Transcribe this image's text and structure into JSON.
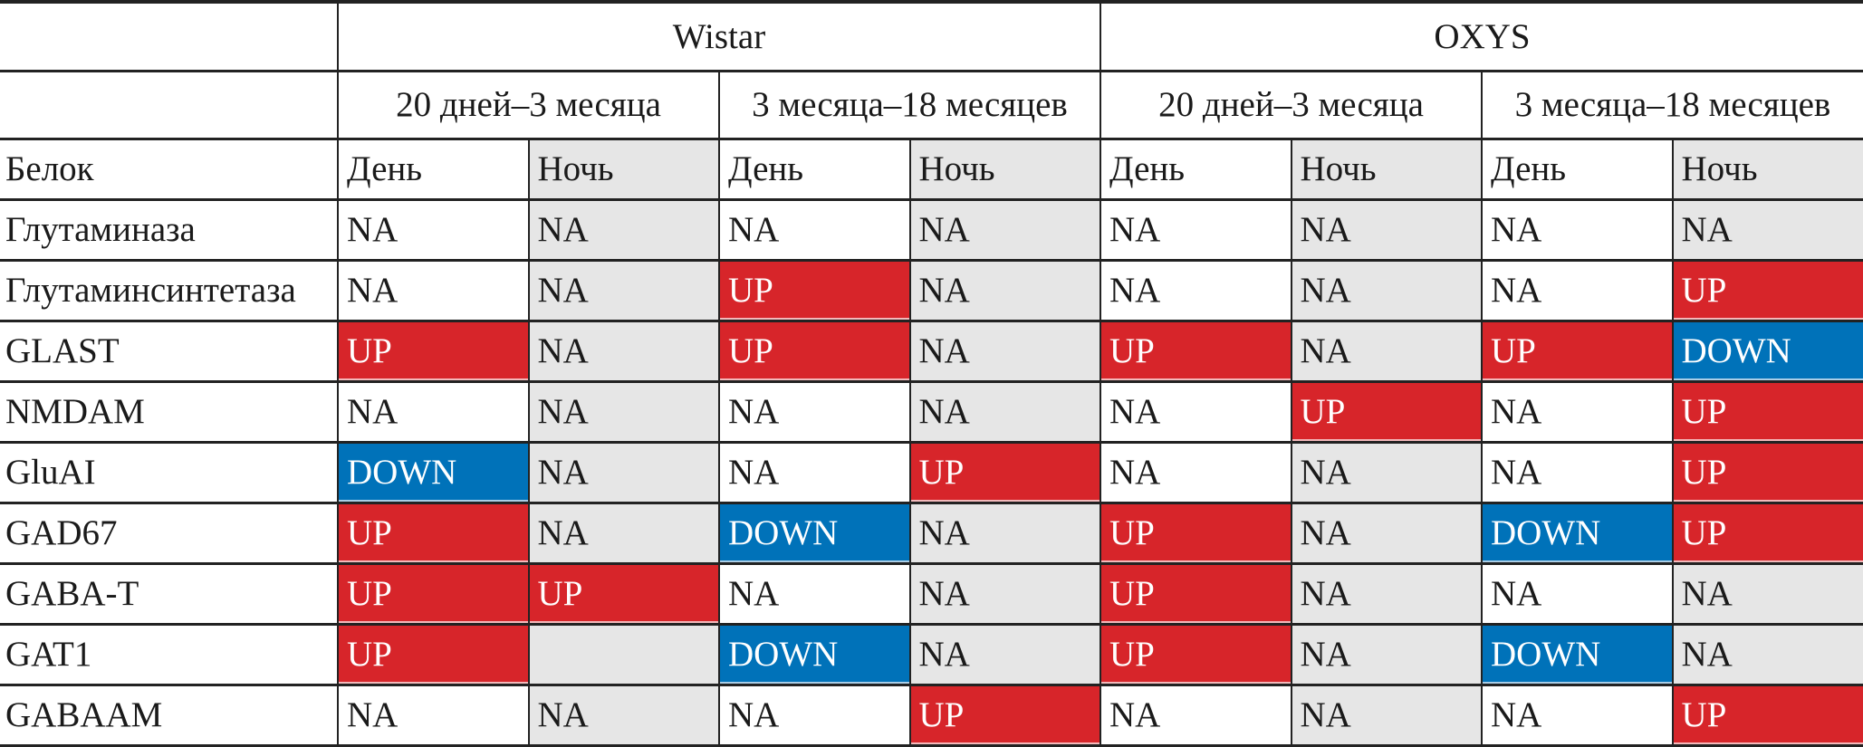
{
  "header": {
    "groups": [
      "Wistar",
      "OXYS"
    ],
    "periods": [
      "20 дней–3 месяца",
      "3 месяца–18 месяцев",
      "20 дней–3 месяца",
      "3 месяца–18 месяцев"
    ],
    "row_label": "Белок",
    "subcols": [
      "День",
      "Ночь",
      "День",
      "Ночь",
      "День",
      "Ночь",
      "День",
      "Ночь"
    ]
  },
  "colors": {
    "UP": "#d7252a",
    "DOWN": "#0072b9",
    "night_bg": "#e6e6e6"
  },
  "rows": [
    {
      "protein": "Глутаминаза",
      "values": [
        "NA",
        "NA",
        "NA",
        "NA",
        "NA",
        "NA",
        "NA",
        "NA"
      ]
    },
    {
      "protein": "Глутаминсинтетаза",
      "values": [
        "NA",
        "NA",
        "UP",
        "NA",
        "NA",
        "NA",
        "NA",
        "UP"
      ]
    },
    {
      "protein": "GLAST",
      "values": [
        "UP",
        "NA",
        "UP",
        "NA",
        "UP",
        "NA",
        "UP",
        "DOWN"
      ]
    },
    {
      "protein": "NMDAM",
      "values": [
        "NA",
        "NA",
        "NA",
        "NA",
        "NA",
        "UP",
        "NA",
        "UP"
      ]
    },
    {
      "protein": "GluAI",
      "values": [
        "DOWN",
        "NA",
        "NA",
        "UP",
        "NA",
        "NA",
        "NA",
        "UP"
      ]
    },
    {
      "protein": "GAD67",
      "values": [
        "UP",
        "NA",
        "DOWN",
        "NA",
        "UP",
        "NA",
        "DOWN",
        "UP"
      ]
    },
    {
      "protein": "GABA-T",
      "values": [
        "UP",
        "UP",
        "NA",
        "NA",
        "UP",
        "NA",
        "NA",
        "NA"
      ]
    },
    {
      "protein": "GAT1",
      "values": [
        "UP",
        "",
        "DOWN",
        "NA",
        "UP",
        "NA",
        "DOWN",
        "NA"
      ]
    },
    {
      "protein": "GABAAM",
      "values": [
        "NA",
        "NA",
        "NA",
        "UP",
        "NA",
        "NA",
        "NA",
        "UP"
      ]
    }
  ]
}
